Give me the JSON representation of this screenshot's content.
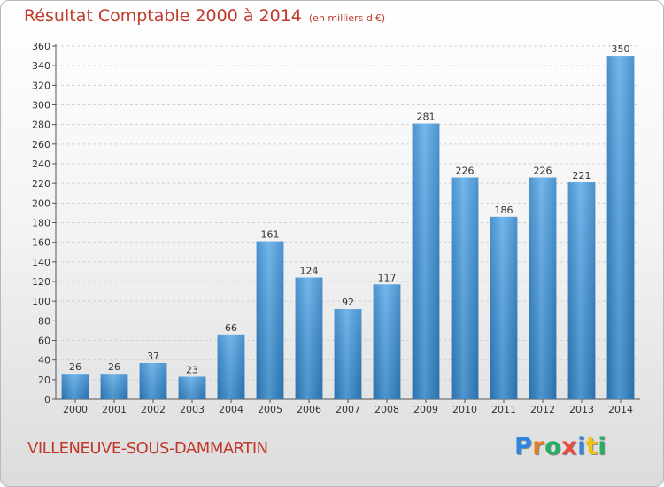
{
  "header": {
    "title": "Résultat Comptable 2000 à 2014",
    "subtitle": "(en milliers d'€)"
  },
  "footer": {
    "city": "VILLENEUVE-SOUS-DAMMARTIN",
    "logo_letters": [
      "P",
      "r",
      "o",
      "x",
      "i",
      "t",
      "i"
    ],
    "logo_colors": [
      "#2e86de",
      "#e67e22",
      "#27ae60",
      "#e74c3c",
      "#2e86de",
      "#f1c40f",
      "#27ae60"
    ]
  },
  "chart_data": {
    "type": "bar",
    "title": "Résultat Comptable 2000 à 2014",
    "subtitle": "(en milliers d'€)",
    "categories": [
      "2000",
      "2001",
      "2002",
      "2003",
      "2004",
      "2005",
      "2006",
      "2007",
      "2008",
      "2009",
      "2010",
      "2011",
      "2012",
      "2013",
      "2014"
    ],
    "values": [
      26,
      26,
      37,
      23,
      66,
      161,
      124,
      92,
      117,
      281,
      226,
      186,
      226,
      221,
      350
    ],
    "ylim": [
      0,
      360
    ],
    "yticks": [
      0,
      20,
      40,
      60,
      80,
      100,
      120,
      140,
      160,
      180,
      200,
      220,
      240,
      260,
      280,
      300,
      320,
      340,
      360
    ],
    "grid": true,
    "bar_color": "#3a8fd6",
    "legend": "none"
  }
}
